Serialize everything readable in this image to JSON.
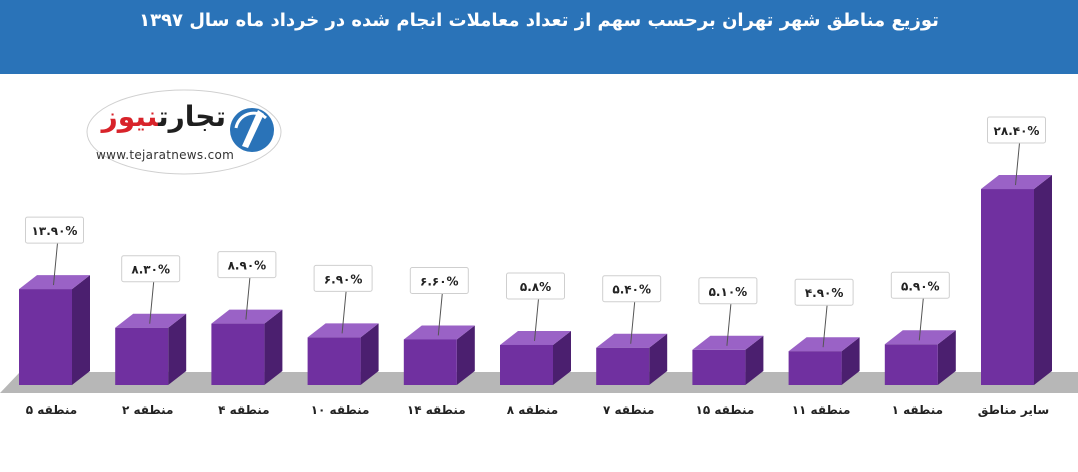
{
  "header": {
    "title": "توزیع مناطق شهر تهران برحسب سهم از تعداد معاملات انجام شده در خرداد ماه سال ۱۳۹۷"
  },
  "logo": {
    "name_part1": "تجارت",
    "name_part2": "نیوز",
    "site": "www.tejaratnews.com"
  },
  "colors": {
    "header_bg": "#2a73b8",
    "bar_front": "#7030a0",
    "bar_side": "#4b1f6f",
    "bar_top": "#9a62c6",
    "floor": "#b7b7b7"
  },
  "chart_data": {
    "type": "bar",
    "title": "توزیع مناطق شهر تهران برحسب سهم از تعداد معاملات انجام شده در خرداد ماه سال ۱۳۹۷",
    "categories": [
      "منطقه ۵",
      "منطقه ۲",
      "منطقه ۴",
      "منطقه ۱۰",
      "منطقه ۱۴",
      "منطقه ۸",
      "منطقه ۷",
      "منطقه ۱۵",
      "منطقه ۱۱",
      "منطقه ۱",
      "سایر مناطق"
    ],
    "values": [
      13.9,
      8.3,
      8.9,
      6.9,
      6.6,
      5.8,
      5.4,
      5.1,
      4.9,
      5.9,
      28.4
    ],
    "data_labels": [
      "۱۳.۹۰%",
      "۸.۳۰%",
      "۸.۹۰%",
      "۶.۹۰%",
      "۶.۶۰%",
      "۵.۸%",
      "۵.۴۰%",
      "۵.۱۰%",
      "۴.۹۰%",
      "۵.۹۰%",
      "۲۸.۴۰%"
    ],
    "unit": "%",
    "grid": false,
    "legend": "none"
  }
}
